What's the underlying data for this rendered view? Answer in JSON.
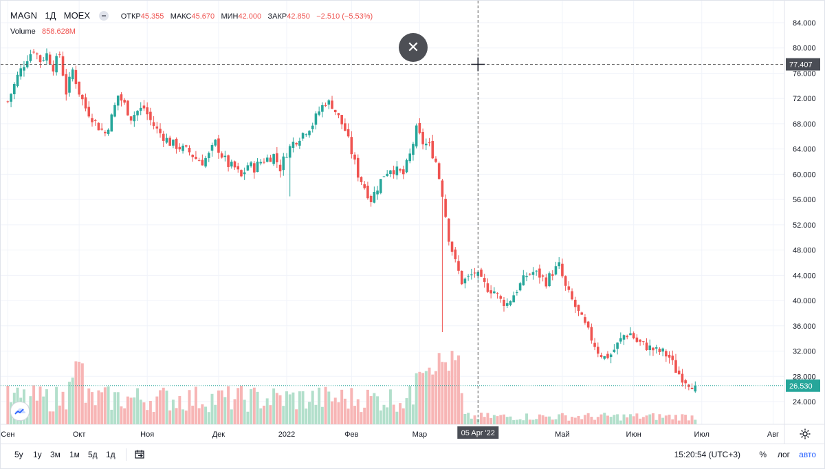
{
  "legend": {
    "symbol": "MAGN",
    "interval": "1Д",
    "exchange": "MOEX",
    "ohlc": [
      {
        "label": "ОТКР",
        "value": "45.355"
      },
      {
        "label": "МАКС",
        "value": "45.670"
      },
      {
        "label": "МИН",
        "value": "42.000"
      },
      {
        "label": "ЗАКР",
        "value": "42.850"
      },
      {
        "label": "",
        "value": "−2.510 (−5.53%)"
      }
    ],
    "volume_label": "Volume",
    "volume_value": "858.628M"
  },
  "colors": {
    "up": "#26a69a",
    "down": "#ef5350",
    "vol_up": "#b2dfcb",
    "vol_down": "#f7b5b5",
    "accent": "#2962ff"
  },
  "crosshair": {
    "price_label": "77.407",
    "date_label": "05 Apr '22"
  },
  "last_price_label": "26.530",
  "close_icon": "close-icon",
  "bottom": {
    "ranges": [
      "5y",
      "1y",
      "3м",
      "1м",
      "5д",
      "1д"
    ],
    "time": "15:20:54 (UTC+3)",
    "percent": "%",
    "log": "лог",
    "auto": "авто"
  },
  "chart_data": {
    "type": "candlestick",
    "title": "",
    "ylim": [
      22,
      86
    ],
    "y_ticks": [
      "84.000",
      "80.000",
      "76.000",
      "72.000",
      "68.000",
      "64.000",
      "60.000",
      "56.000",
      "52.000",
      "48.000",
      "44.000",
      "40.000",
      "36.000",
      "32.000",
      "28.000",
      "24.000"
    ],
    "x_labels": [
      "Сен",
      "Окт",
      "Ноя",
      "Дек",
      "2022",
      "Фев",
      "Мар",
      "Май",
      "Июн",
      "Июл",
      "Авг"
    ],
    "x_label_idx": [
      0,
      22,
      43,
      65,
      86,
      106,
      127,
      171,
      193,
      214,
      236
    ],
    "crosshair": {
      "price": 77.407,
      "index": 145
    },
    "last_close": 26.53,
    "close_path": [
      [
        0,
        71.5
      ],
      [
        3,
        75.5
      ],
      [
        6,
        78.5
      ],
      [
        8,
        79.8
      ],
      [
        10,
        78
      ],
      [
        12,
        79
      ],
      [
        14,
        77
      ],
      [
        16,
        79
      ],
      [
        18,
        73
      ],
      [
        20,
        76.5
      ],
      [
        22,
        73
      ],
      [
        24,
        70.5
      ],
      [
        26,
        69
      ],
      [
        28,
        67.5
      ],
      [
        30,
        66.5
      ],
      [
        32,
        69
      ],
      [
        34,
        72.5
      ],
      [
        36,
        71
      ],
      [
        38,
        69
      ],
      [
        40,
        70
      ],
      [
        42,
        70.5
      ],
      [
        44,
        68.5
      ],
      [
        46,
        67
      ],
      [
        48,
        66
      ],
      [
        50,
        65
      ],
      [
        52,
        64.5
      ],
      [
        54,
        64
      ],
      [
        56,
        63.5
      ],
      [
        58,
        62.5
      ],
      [
        60,
        62
      ],
      [
        62,
        63
      ],
      [
        64,
        65
      ],
      [
        66,
        63
      ],
      [
        68,
        61.5
      ],
      [
        70,
        61
      ],
      [
        72,
        59.5
      ],
      [
        74,
        61.5
      ],
      [
        76,
        61
      ],
      [
        78,
        62
      ],
      [
        80,
        62.5
      ],
      [
        82,
        63
      ],
      [
        84,
        61
      ],
      [
        86,
        63.5
      ],
      [
        88,
        65
      ],
      [
        90,
        66
      ],
      [
        92,
        67
      ],
      [
        94,
        68
      ],
      [
        96,
        70
      ],
      [
        98,
        71.5
      ],
      [
        100,
        71
      ],
      [
        102,
        69
      ],
      [
        104,
        67
      ],
      [
        106,
        63.5
      ],
      [
        108,
        60
      ],
      [
        110,
        58
      ],
      [
        112,
        56
      ],
      [
        114,
        58
      ],
      [
        116,
        60
      ],
      [
        118,
        61
      ],
      [
        120,
        60.5
      ],
      [
        122,
        60
      ],
      [
        124,
        63
      ],
      [
        126,
        67
      ],
      [
        128,
        65
      ],
      [
        130,
        64.5
      ],
      [
        132,
        62
      ],
      [
        134,
        57
      ],
      [
        136,
        50
      ],
      [
        138,
        46
      ],
      [
        140,
        43
      ],
      [
        142,
        43.5
      ],
      [
        144,
        44.5
      ],
      [
        146,
        43
      ],
      [
        148,
        42
      ],
      [
        150,
        41.5
      ],
      [
        152,
        40
      ],
      [
        154,
        39.5
      ],
      [
        156,
        41
      ],
      [
        158,
        42.5
      ],
      [
        160,
        44
      ],
      [
        162,
        44.5
      ],
      [
        164,
        44
      ],
      [
        166,
        43
      ],
      [
        168,
        44.5
      ],
      [
        170,
        45.5
      ],
      [
        172,
        42
      ],
      [
        174,
        40
      ],
      [
        176,
        38
      ],
      [
        178,
        36
      ],
      [
        180,
        34
      ],
      [
        182,
        32
      ],
      [
        184,
        31
      ],
      [
        186,
        31.5
      ],
      [
        188,
        33
      ],
      [
        190,
        34.5
      ],
      [
        192,
        34.8
      ],
      [
        194,
        33.5
      ],
      [
        196,
        33
      ],
      [
        198,
        32.5
      ],
      [
        200,
        32
      ],
      [
        202,
        31.8
      ],
      [
        204,
        31
      ],
      [
        206,
        29
      ],
      [
        208,
        27.8
      ],
      [
        210,
        27
      ],
      [
        212,
        26.5
      ]
    ],
    "volume_ylim": [
      0,
      3.2
    ],
    "note_volume": "Volume histogram colored by candle direction"
  }
}
